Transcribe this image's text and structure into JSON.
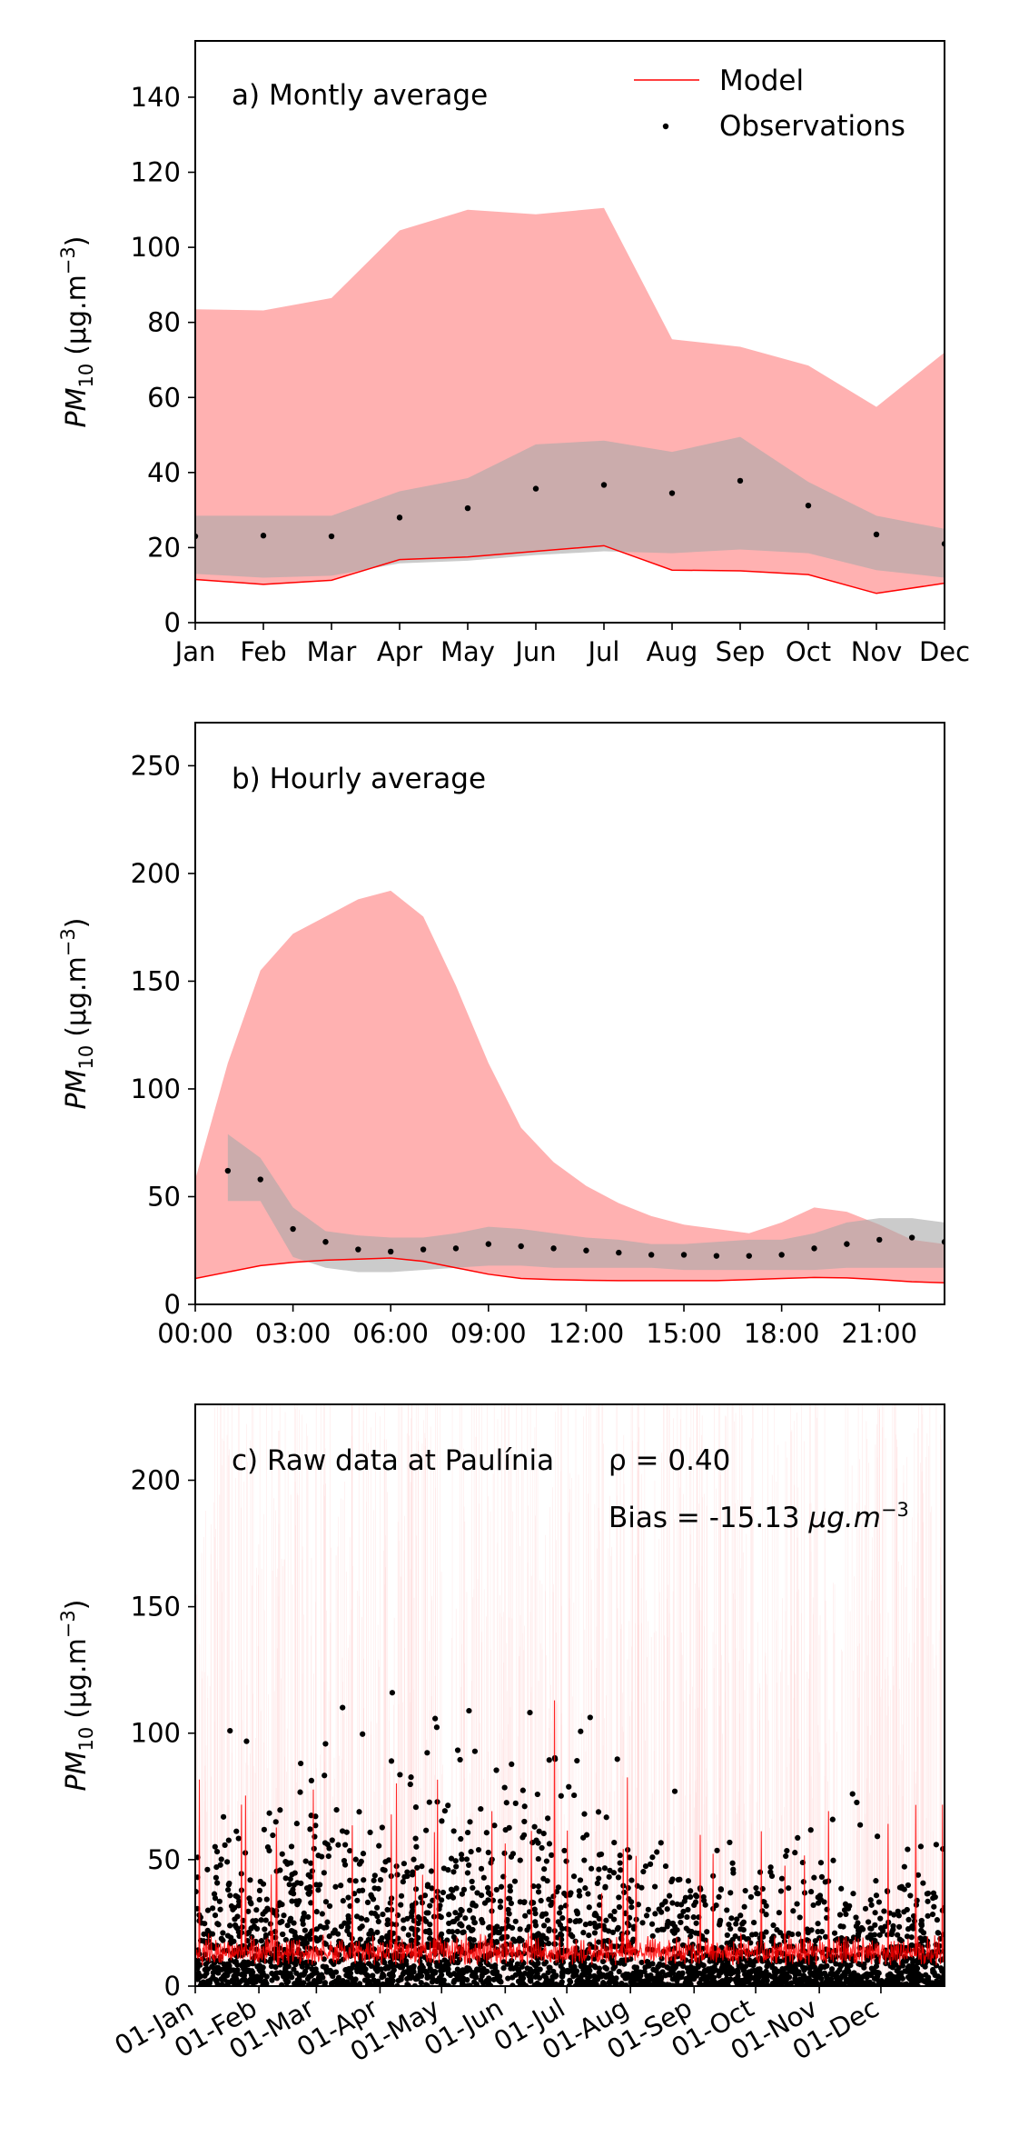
{
  "chart_data": [
    {
      "type": "area",
      "annotation": "a) Montly average",
      "ylabel": {
        "base": "PM",
        "sub": "10",
        "unit": "(μg.m",
        "sup": "−3",
        "close": ")"
      },
      "ylim": [
        0,
        155
      ],
      "yticks": [
        0,
        20,
        40,
        60,
        80,
        100,
        120,
        140
      ],
      "categories": [
        "Jan",
        "Feb",
        "Mar",
        "Apr",
        "May",
        "Jun",
        "Jul",
        "Aug",
        "Sep",
        "Oct",
        "Nov",
        "Dec"
      ],
      "legend": {
        "placement": "top-right",
        "entries": [
          {
            "label": "Model",
            "kind": "line"
          },
          {
            "label": "Observations",
            "kind": "dot"
          }
        ]
      },
      "model_line": [
        11.5,
        10.2,
        11.3,
        16.8,
        17.5,
        19.0,
        20.5,
        14.0,
        13.8,
        12.8,
        7.8,
        10.5
      ],
      "model_band_lower": [
        11.5,
        10.2,
        11.3,
        16.8,
        17.5,
        19.0,
        20.5,
        14.0,
        13.8,
        12.8,
        7.8,
        10.5
      ],
      "model_band_upper": [
        83.5,
        83.2,
        86.5,
        104.5,
        110.0,
        108.8,
        110.5,
        75.5,
        73.5,
        68.5,
        57.5,
        72.0
      ],
      "obs_values": [
        23.0,
        23.2,
        23.0,
        28.0,
        30.5,
        35.7,
        36.7,
        34.5,
        37.8,
        31.2,
        23.5,
        21.0
      ],
      "obs_band_lower": [
        13.0,
        12.0,
        12.5,
        15.8,
        16.5,
        18.0,
        19.0,
        18.5,
        19.5,
        18.5,
        14.0,
        12.0
      ],
      "obs_band_upper": [
        28.5,
        28.5,
        28.5,
        35.0,
        38.5,
        47.5,
        48.5,
        45.5,
        49.5,
        37.5,
        28.5,
        25.0
      ],
      "colors": {
        "model": "#ff0000",
        "model_band": "#ffb1b1",
        "obs": "#000000",
        "obs_band": "#a9a9a9"
      }
    },
    {
      "type": "area",
      "annotation": "b) Hourly average",
      "ylabel": {
        "base": "PM",
        "sub": "10",
        "unit": "(μg.m",
        "sup": "−3",
        "close": ")"
      },
      "ylim": [
        0,
        270
      ],
      "yticks": [
        0,
        50,
        100,
        150,
        200,
        250
      ],
      "xlim": [
        0,
        23
      ],
      "xticks": [
        0,
        3,
        6,
        9,
        12,
        15,
        18,
        21
      ],
      "xtick_labels": [
        "00:00",
        "03:00",
        "06:00",
        "09:00",
        "12:00",
        "15:00",
        "18:00",
        "21:00"
      ],
      "hours": [
        0,
        1,
        2,
        3,
        4,
        5,
        6,
        7,
        8,
        9,
        10,
        11,
        12,
        13,
        14,
        15,
        16,
        17,
        18,
        19,
        20,
        21,
        22,
        23
      ],
      "model_line": [
        12,
        15,
        18,
        19.5,
        20.5,
        21,
        21.5,
        20,
        17,
        14,
        12,
        11.5,
        11.2,
        11,
        11,
        11,
        11,
        11.5,
        12,
        12.5,
        12.3,
        11.5,
        10.5,
        10
      ],
      "model_band_upper": [
        58,
        112,
        155,
        172,
        180,
        188,
        192,
        180,
        148,
        112,
        82,
        66,
        55,
        47,
        41,
        37,
        35,
        33,
        38,
        45,
        43,
        37,
        30,
        28
      ],
      "obs_hours": [
        1,
        2,
        3,
        4,
        5,
        6,
        7,
        8,
        9,
        10,
        11,
        12,
        13,
        14,
        15,
        16,
        17,
        18,
        19,
        20,
        21,
        22,
        23
      ],
      "obs_values": [
        62,
        58,
        35,
        29,
        25.5,
        24.5,
        25.5,
        26,
        28,
        27,
        26,
        25,
        24,
        23,
        23,
        22.5,
        22.5,
        23,
        26,
        28,
        30,
        31,
        29
      ],
      "obs_band_lower": [
        48,
        48,
        22,
        17,
        15,
        15,
        16,
        17,
        18,
        18,
        17,
        17,
        17,
        17,
        16,
        16,
        16,
        16,
        16,
        17,
        17,
        17,
        17
      ],
      "obs_band_upper": [
        79,
        68,
        45,
        34,
        32,
        31,
        31,
        33,
        36,
        35,
        33,
        31,
        30,
        28,
        28,
        29,
        30,
        30,
        33,
        38,
        40,
        40,
        38
      ],
      "colors": {
        "model": "#ff0000",
        "model_band": "#ffb1b1",
        "obs": "#000000",
        "obs_band": "#a9a9a9"
      }
    },
    {
      "type": "scatter",
      "annotation": "c) Raw data at Paulínia",
      "stat_rho": "ρ = 0.40",
      "stat_bias": {
        "prefix": "Bias = -15.13 ",
        "unit": "μg.m",
        "sup": "−3"
      },
      "ylabel": {
        "base": "PM",
        "sub": "10",
        "unit": "(μg.m",
        "sup": "−3",
        "close": ")"
      },
      "ylim": [
        0,
        230
      ],
      "yticks": [
        0,
        50,
        100,
        150,
        200
      ],
      "xlim": [
        0,
        365
      ],
      "xticks": [
        0,
        31,
        59,
        90,
        120,
        151,
        181,
        212,
        243,
        273,
        304,
        334
      ],
      "xtick_labels": [
        "01-Jan",
        "01-Feb",
        "01-Mar",
        "01-Apr",
        "01-May",
        "01-Jun",
        "01-Jul",
        "01-Aug",
        "01-Sep",
        "01-Oct",
        "01-Nov",
        "01-Dec"
      ],
      "series_summary": {
        "model_peak_value": 113,
        "obs_max_value": 117,
        "obs_typical_range": [
          0,
          80
        ]
      },
      "colors": {
        "model": "#ff0000",
        "model_spread": "#ffd0d0",
        "obs": "#000000"
      }
    }
  ]
}
